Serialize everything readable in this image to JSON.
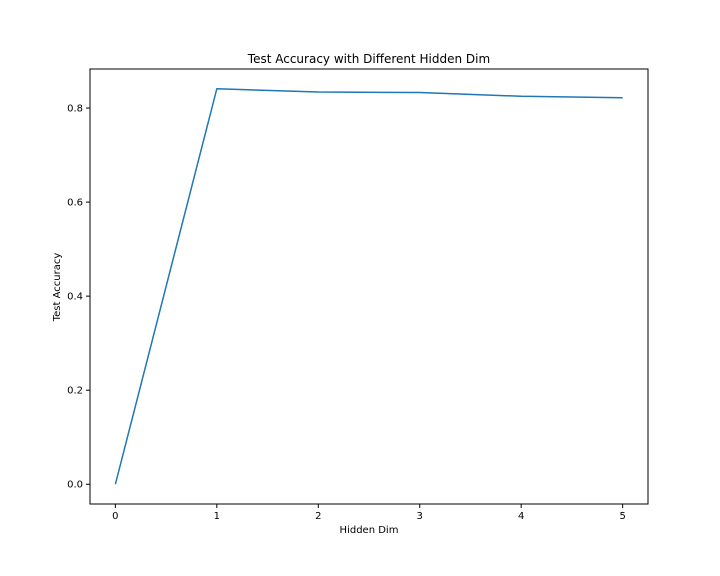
{
  "chart_data": {
    "type": "line",
    "title": "Test Accuracy with Different Hidden Dim",
    "xlabel": "Hidden Dim",
    "ylabel": "Test Accuracy",
    "x": [
      0,
      1,
      2,
      3,
      4,
      5
    ],
    "series": [
      {
        "values": [
          0.0,
          0.841,
          0.834,
          0.833,
          0.825,
          0.822
        ],
        "color": "#1f77b4"
      }
    ],
    "xlim": [
      -0.25,
      5.25
    ],
    "ylim": [
      -0.042,
      0.883
    ],
    "xticks": [
      0,
      1,
      2,
      3,
      4,
      5
    ],
    "xtick_labels": [
      "0",
      "1",
      "2",
      "3",
      "4",
      "5"
    ],
    "yticks": [
      0.0,
      0.2,
      0.4,
      0.6,
      0.8
    ],
    "ytick_labels": [
      "0.0",
      "0.2",
      "0.4",
      "0.6",
      "0.8"
    ],
    "grid": false,
    "legend": false
  }
}
